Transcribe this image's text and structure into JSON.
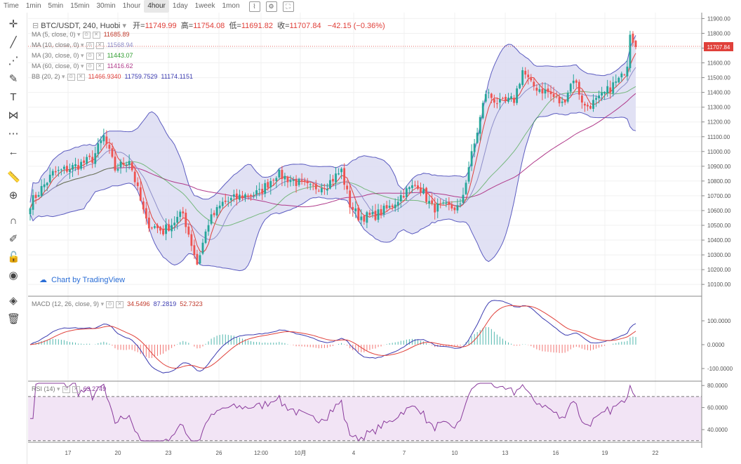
{
  "timeframes": [
    {
      "label": "Time",
      "active": false
    },
    {
      "label": "1min",
      "active": false
    },
    {
      "label": "5min",
      "active": false
    },
    {
      "label": "15min",
      "active": false
    },
    {
      "label": "30min",
      "active": false
    },
    {
      "label": "1hour",
      "active": false
    },
    {
      "label": "4hour",
      "active": true
    },
    {
      "label": "1day",
      "active": false
    },
    {
      "label": "1week",
      "active": false
    },
    {
      "label": "1mon",
      "active": false
    }
  ],
  "header": {
    "symbol": "BTC/USDT, 240, Huobi",
    "open_label": "开=",
    "open": "11749.99",
    "high_label": "高=",
    "high": "11754.08",
    "low_label": "低=",
    "low": "11691.82",
    "close_label": "收=",
    "close": "11707.84",
    "change": "−42.15 (−0.36%)"
  },
  "indicators": [
    {
      "name": "MA (5, close, 0)",
      "value": "11685.89",
      "color": "#c0392b"
    },
    {
      "name": "MA (10, close, 0)",
      "value": "11568.94",
      "color": "#8e8ec9"
    },
    {
      "name": "MA (30, close, 0)",
      "value": "11443.07",
      "color": "#2e9c2e"
    },
    {
      "name": "MA (60, close, 0)",
      "value": "11416.62",
      "color": "#b03a8a"
    },
    {
      "name": "BB (20, 2)",
      "value": "11466.9340",
      "value2": "11759.7529",
      "value3": "11174.1151",
      "color": "#e0403a"
    }
  ],
  "brand": "Chart by TradingView",
  "price_badge": "11707.84",
  "macd": {
    "name": "MACD (12, 26, close, 9)",
    "v1": "34.5496",
    "v2": "87.2819",
    "v3": "52.7323"
  },
  "rsi": {
    "name": "RSI (14)",
    "value": "63.2749"
  },
  "colors": {
    "up": "#26a69a",
    "down": "#ef5350",
    "band": "#6f6fc4",
    "bandfill": "#dcdcf2"
  },
  "chart_data": {
    "type": "candlestick",
    "title": "BTC/USDT, 240, Huobi",
    "y_ticks": [
      11900,
      11800,
      11700,
      11600,
      11500,
      11400,
      11300,
      11200,
      11100,
      11000,
      10900,
      10800,
      10700,
      10600,
      10500,
      10400,
      10300,
      10200,
      10100
    ],
    "ylim": [
      10020,
      11940
    ],
    "x_tick_labels": [
      "17",
      "20",
      "23",
      "26",
      "12:00",
      "10月",
      "4",
      "7",
      "10",
      "13",
      "16",
      "19",
      "22"
    ],
    "macd_ticks": [
      "100.0000",
      "0.0000",
      "-100.0000"
    ],
    "rsi_ticks": [
      "80.0000",
      "60.0000",
      "40.0000"
    ],
    "close_anchors": [
      [
        0,
        10650
      ],
      [
        8,
        10850
      ],
      [
        16,
        10900
      ],
      [
        22,
        10950
      ],
      [
        26,
        11100
      ],
      [
        30,
        10880
      ],
      [
        35,
        10950
      ],
      [
        41,
        10520
      ],
      [
        47,
        10460
      ],
      [
        54,
        10580
      ],
      [
        59,
        10240
      ],
      [
        63,
        10520
      ],
      [
        68,
        10650
      ],
      [
        75,
        10700
      ],
      [
        81,
        10720
      ],
      [
        87,
        10850
      ],
      [
        93,
        10800
      ],
      [
        99,
        10750
      ],
      [
        105,
        10780
      ],
      [
        110,
        10870
      ],
      [
        113,
        10640
      ],
      [
        116,
        10560
      ],
      [
        121,
        10560
      ],
      [
        127,
        10620
      ],
      [
        132,
        10720
      ],
      [
        137,
        10780
      ],
      [
        142,
        10620
      ],
      [
        148,
        10620
      ],
      [
        152,
        10620
      ],
      [
        155,
        10900
      ],
      [
        157,
        11050
      ],
      [
        161,
        11400
      ],
      [
        166,
        11320
      ],
      [
        171,
        11350
      ],
      [
        174,
        11550
      ],
      [
        177,
        11450
      ],
      [
        183,
        11400
      ],
      [
        188,
        11320
      ],
      [
        192,
        11500
      ],
      [
        196,
        11300
      ],
      [
        201,
        11350
      ],
      [
        206,
        11450
      ],
      [
        209,
        11500
      ],
      [
        211,
        11600
      ],
      [
        212,
        11820
      ],
      [
        214,
        11708
      ]
    ],
    "count": 215
  }
}
